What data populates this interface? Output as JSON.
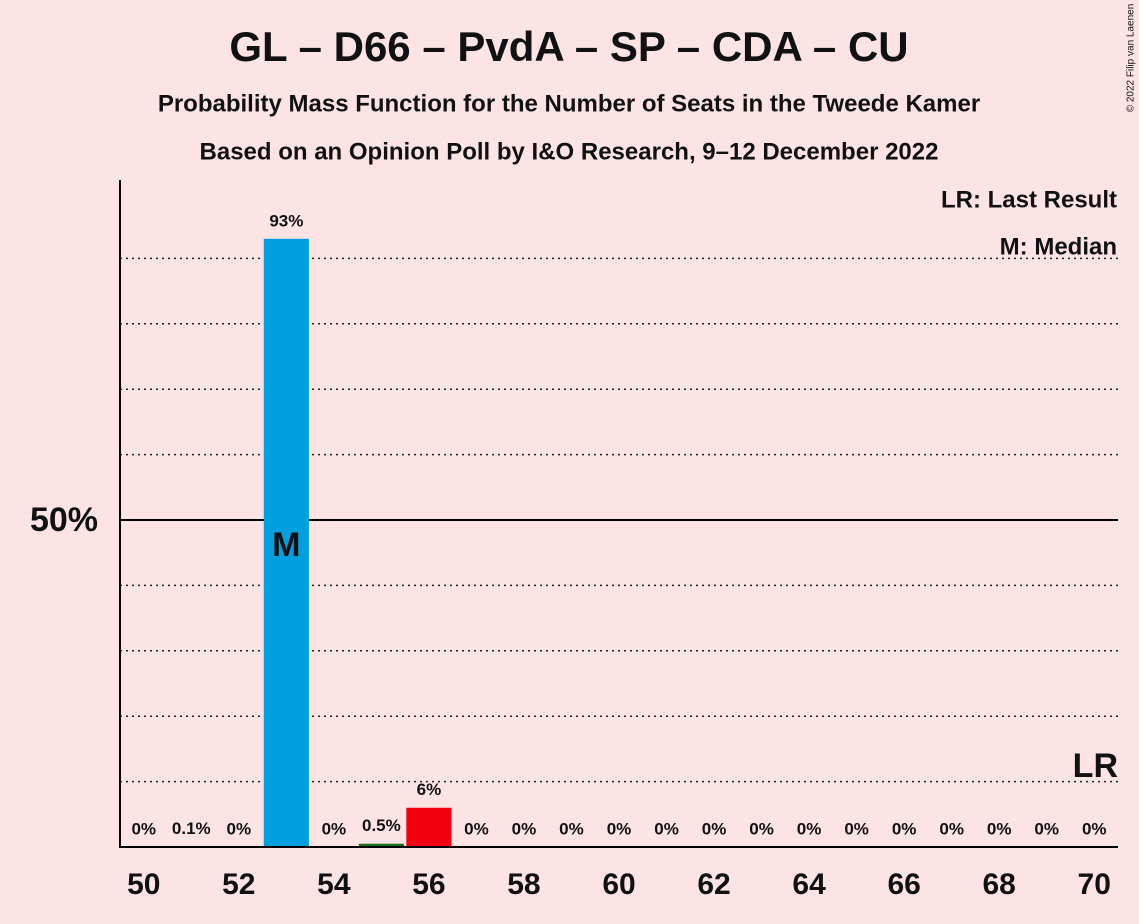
{
  "chart_data": {
    "type": "bar",
    "title": "GL – D66 – PvdA – SP – CDA – CU",
    "subtitle": "Probability Mass Function for the Number of Seats in the Tweede Kamer",
    "subtitle2": "Based on an Opinion Poll by I&O Research, 9–12 December 2022",
    "copyright": "© 2022 Filip van Laenen",
    "legend": [
      "LR: Last Result",
      "M: Median"
    ],
    "median": 53,
    "median_label": "M",
    "last_result": 70,
    "last_result_label": "LR",
    "x": [
      50,
      51,
      52,
      53,
      54,
      55,
      56,
      57,
      58,
      59,
      60,
      61,
      62,
      63,
      64,
      65,
      66,
      67,
      68,
      69,
      70
    ],
    "values": [
      0,
      0.1,
      0,
      93,
      0,
      0.5,
      6,
      0,
      0,
      0,
      0,
      0,
      0,
      0,
      0,
      0,
      0,
      0,
      0,
      0,
      0
    ],
    "value_labels": [
      "0%",
      "0.1%",
      "0%",
      "93%",
      "0%",
      "0.5%",
      "6%",
      "0%",
      "0%",
      "0%",
      "0%",
      "0%",
      "0%",
      "0%",
      "0%",
      "0%",
      "0%",
      "0%",
      "0%",
      "0%",
      "0%"
    ],
    "colors": [
      null,
      null,
      null,
      "#009fe0",
      null,
      "#1a6e1a",
      "#f20010",
      null,
      null,
      null,
      null,
      null,
      null,
      null,
      null,
      null,
      null,
      null,
      null,
      null,
      null
    ],
    "xlim": [
      49.5,
      70.5
    ],
    "xticks": [
      50,
      52,
      54,
      56,
      58,
      60,
      62,
      64,
      66,
      68,
      70
    ],
    "ylim": [
      0,
      100
    ],
    "yticks": [
      {
        "value": 50,
        "label": "50%"
      }
    ],
    "ygrid": [
      10,
      20,
      30,
      40,
      60,
      70,
      80,
      90
    ]
  }
}
